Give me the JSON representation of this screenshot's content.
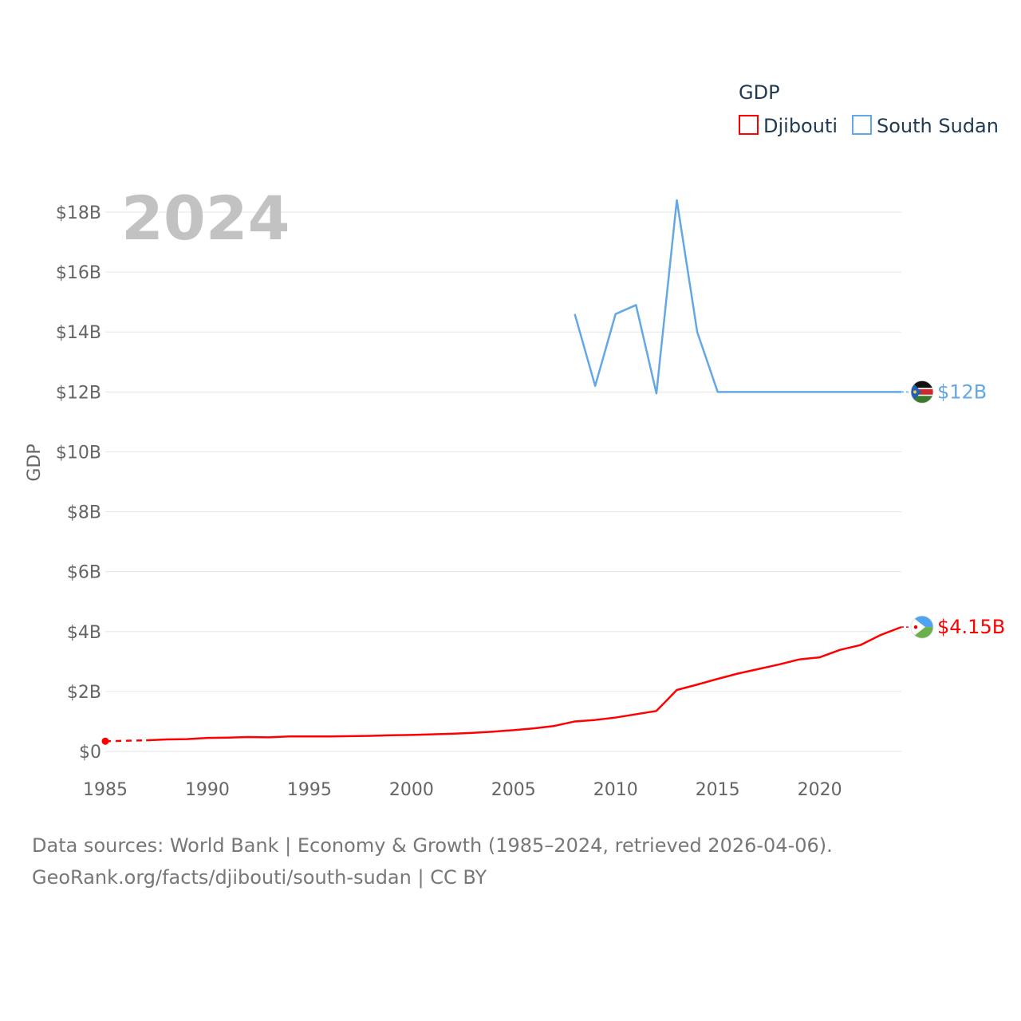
{
  "chart_data": {
    "type": "line",
    "title": "GDP",
    "year_label": "2024",
    "ylabel": "GDP",
    "xlabel": "",
    "x_ticks": [
      "1985",
      "1990",
      "1995",
      "2000",
      "2005",
      "2010",
      "2015",
      "2020"
    ],
    "x_tick_values": [
      1985,
      1990,
      1995,
      2000,
      2005,
      2010,
      2015,
      2020
    ],
    "xlim": [
      1985,
      2024
    ],
    "y_ticks": [
      "$0",
      "$2B",
      "$4B",
      "$6B",
      "$8B",
      "$10B",
      "$12B",
      "$14B",
      "$16B",
      "$18B"
    ],
    "y_tick_values": [
      0,
      2,
      4,
      6,
      8,
      10,
      12,
      14,
      16,
      18
    ],
    "ylim": [
      0,
      18
    ],
    "legend_title": "GDP",
    "series": [
      {
        "name": "Djibouti",
        "color": "#ff0000",
        "end_label": "$4.15B",
        "flag": "djibouti-flag-icon",
        "gap_years": [
          [
            1985,
            1987
          ]
        ],
        "points": [
          [
            1985,
            0.34
          ],
          [
            1987,
            0.37
          ],
          [
            1988,
            0.4
          ],
          [
            1989,
            0.41
          ],
          [
            1990,
            0.45
          ],
          [
            1991,
            0.46
          ],
          [
            1992,
            0.48
          ],
          [
            1993,
            0.47
          ],
          [
            1994,
            0.5
          ],
          [
            1995,
            0.5
          ],
          [
            1996,
            0.5
          ],
          [
            1997,
            0.51
          ],
          [
            1998,
            0.52
          ],
          [
            1999,
            0.54
          ],
          [
            2000,
            0.55
          ],
          [
            2001,
            0.57
          ],
          [
            2002,
            0.59
          ],
          [
            2003,
            0.62
          ],
          [
            2004,
            0.66
          ],
          [
            2005,
            0.71
          ],
          [
            2006,
            0.77
          ],
          [
            2007,
            0.85
          ],
          [
            2008,
            1.0
          ],
          [
            2009,
            1.05
          ],
          [
            2010,
            1.13
          ],
          [
            2011,
            1.24
          ],
          [
            2012,
            1.35
          ],
          [
            2013,
            2.05
          ],
          [
            2014,
            2.23
          ],
          [
            2015,
            2.42
          ],
          [
            2016,
            2.6
          ],
          [
            2017,
            2.75
          ],
          [
            2018,
            2.9
          ],
          [
            2019,
            3.07
          ],
          [
            2020,
            3.14
          ],
          [
            2021,
            3.39
          ],
          [
            2022,
            3.55
          ],
          [
            2023,
            3.89
          ],
          [
            2024,
            4.15
          ]
        ]
      },
      {
        "name": "South Sudan",
        "color": "#63a7e6",
        "end_label": "$12B",
        "flag": "south-sudan-flag-icon",
        "gap_years": [],
        "points": [
          [
            2008,
            14.6
          ],
          [
            2009,
            12.2
          ],
          [
            2010,
            14.6
          ],
          [
            2011,
            14.9
          ],
          [
            2012,
            11.95
          ],
          [
            2013,
            18.4
          ],
          [
            2014,
            14.0
          ],
          [
            2015,
            12.0
          ],
          [
            2016,
            12.0
          ],
          [
            2017,
            12.0
          ],
          [
            2018,
            12.0
          ],
          [
            2019,
            12.0
          ],
          [
            2020,
            12.0
          ],
          [
            2021,
            12.0
          ],
          [
            2022,
            12.0
          ],
          [
            2023,
            12.0
          ],
          [
            2024,
            12.0
          ]
        ]
      }
    ]
  },
  "footer": {
    "line1": "Data sources: World Bank | Economy & Growth (1985–2024, retrieved 2026-04-06).",
    "line2": "GeoRank.org/facts/djibouti/south-sudan | CC BY"
  }
}
